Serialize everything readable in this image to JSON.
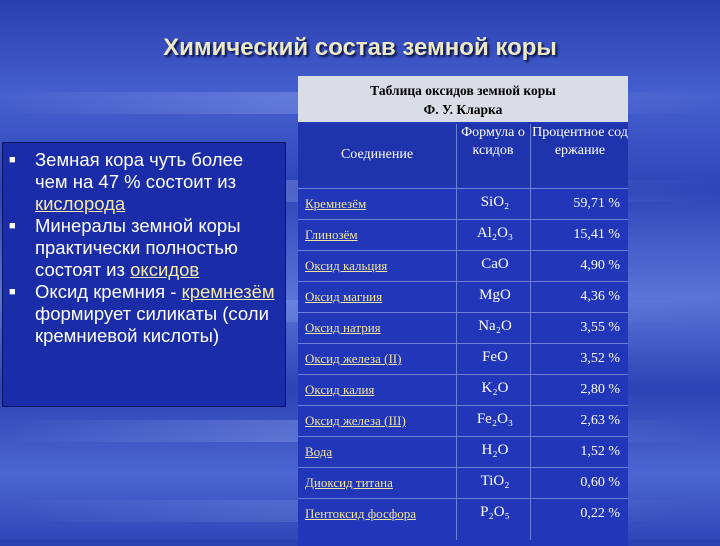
{
  "title": "Химический состав земной коры",
  "bullets": [
    {
      "prefix": "Земная кора чуть более чем на 47 % состоит из ",
      "link": "кислорода",
      "suffix": ""
    },
    {
      "prefix": "Минералы земной коры практически полностью состоят из ",
      "link": "оксидов",
      "suffix": ""
    },
    {
      "prefix": "Оксид кремния - ",
      "link": "кремнезём",
      "suffix": " формирует силикаты (соли кремниевой кислоты)"
    }
  ],
  "table": {
    "caption_line1": "Таблица оксидов земной коры",
    "caption_line2": "Ф. У. Кларка",
    "headers": {
      "compound": "Соединение",
      "formula": "Формула оксидов",
      "percent": "Процентное содержание"
    },
    "rows": [
      {
        "name": "Кремнезём",
        "formula": "SiO₂",
        "percent": "59,71 %"
      },
      {
        "name": "Глинозём",
        "formula": "Al₂O₃",
        "percent": "15,41 %"
      },
      {
        "name": "Оксид кальция",
        "formula": "CaO",
        "percent": "4,90 %"
      },
      {
        "name": "Оксид магния",
        "formula": "MgO",
        "percent": "4,36 %"
      },
      {
        "name": "Оксид натрия",
        "formula": "Na₂O",
        "percent": "3,55 %"
      },
      {
        "name": "Оксид железа (II)",
        "formula": "FeO",
        "percent": "3,52 %"
      },
      {
        "name": "Оксид калия",
        "formula": "K₂O",
        "percent": "2,80 %"
      },
      {
        "name": "Оксид железа (III)",
        "formula": "Fe₂O₃",
        "percent": "2,63 %"
      },
      {
        "name": "Вода",
        "formula": "H₂O",
        "percent": "1,52 %"
      },
      {
        "name": "Диоксид титана",
        "formula": "TiO₂",
        "percent": "0,60 %"
      },
      {
        "name": "Пентоксид фосфора",
        "formula": "P₂O₅",
        "percent": "0,22 %"
      }
    ]
  },
  "colors": {
    "background": "#2f46b8",
    "title": "#ece9c8",
    "link": "#f1e6a0"
  }
}
